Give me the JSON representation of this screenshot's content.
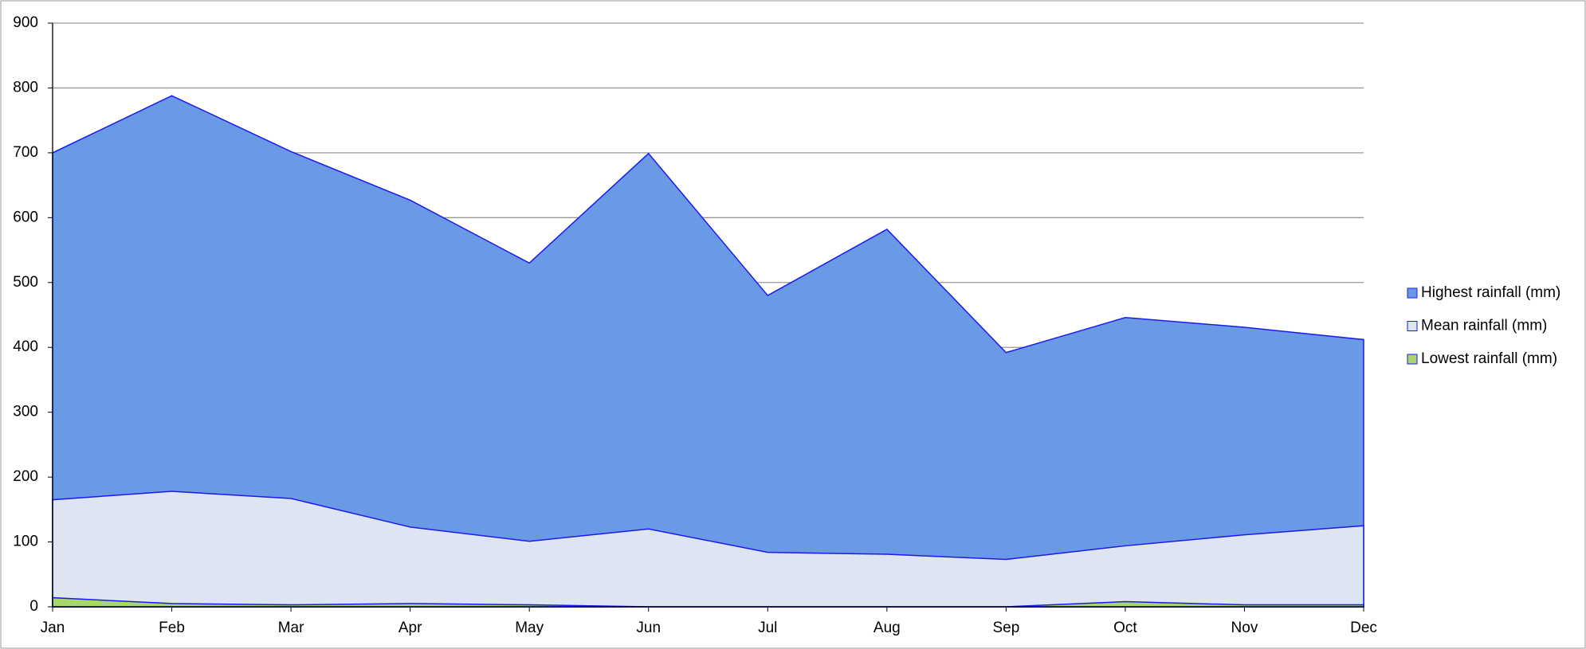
{
  "chart_data": {
    "type": "area",
    "categories": [
      "Jan",
      "Feb",
      "Mar",
      "Apr",
      "May",
      "Jun",
      "Jul",
      "Aug",
      "Sep",
      "Oct",
      "Nov",
      "Dec"
    ],
    "series": [
      {
        "name": "Highest rainfall (mm)",
        "color": "#6a9ae6",
        "values": [
          700,
          788,
          702,
          627,
          530,
          699,
          480,
          582,
          392,
          446,
          431,
          412
        ]
      },
      {
        "name": "Mean rainfall (mm)",
        "color": "#dde5f2",
        "values": [
          165,
          178,
          167,
          123,
          101,
          120,
          84,
          81,
          73,
          94,
          111,
          125
        ]
      },
      {
        "name": "Lowest rainfall (mm)",
        "color": "#a8d66a",
        "values": [
          14,
          5,
          3,
          5,
          3,
          0,
          0,
          0,
          0,
          8,
          3,
          3
        ]
      }
    ],
    "ylim": [
      0,
      900
    ],
    "yticks": [
      0,
      100,
      200,
      300,
      400,
      500,
      600,
      700,
      800,
      900
    ],
    "grid": true,
    "legend": "right"
  }
}
